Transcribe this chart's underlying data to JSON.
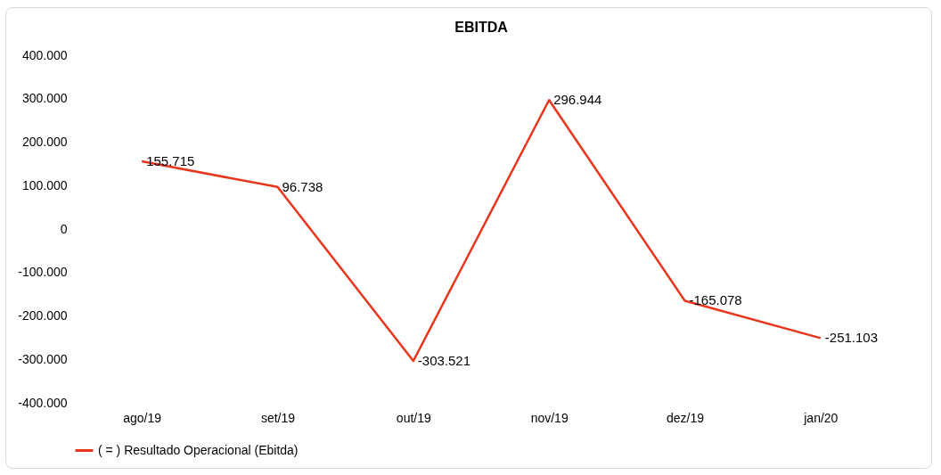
{
  "chart_data": {
    "type": "line",
    "title": "EBITDA",
    "categories": [
      "ago/19",
      "set/19",
      "out/19",
      "nov/19",
      "dez/19",
      "jan/20"
    ],
    "series": [
      {
        "name": "( = ) Resultado Operacional (Ebitda)",
        "color": "#e8351c",
        "values": [
          155715,
          96738,
          -303521,
          296944,
          -165078,
          -251103
        ],
        "value_labels": [
          "155.715",
          "96.738",
          "-303.521",
          "296.944",
          "-165.078",
          "-251.103"
        ]
      }
    ],
    "ylim": [
      -400000,
      400000
    ],
    "yticks": [
      {
        "value": -400000,
        "label": "-400.000"
      },
      {
        "value": -300000,
        "label": "-300.000"
      },
      {
        "value": -200000,
        "label": "-200.000"
      },
      {
        "value": -100000,
        "label": "-100.000"
      },
      {
        "value": 0,
        "label": "0"
      },
      {
        "value": 100000,
        "label": "100.000"
      },
      {
        "value": 200000,
        "label": "200.000"
      },
      {
        "value": 300000,
        "label": "300.000"
      },
      {
        "value": 400000,
        "label": "400.000"
      }
    ],
    "grid": false,
    "legend": "bottom",
    "marker": "none",
    "line_style": "solid"
  }
}
